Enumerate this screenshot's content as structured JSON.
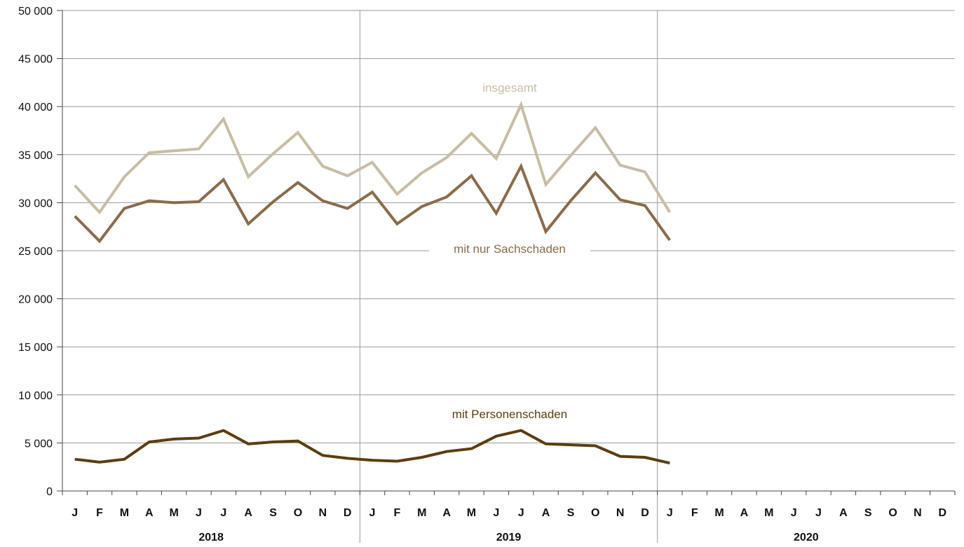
{
  "chart_data": {
    "type": "line",
    "yticks": [
      "0",
      "5 000",
      "10 000",
      "15 000",
      "20 000",
      "25 000",
      "30 000",
      "35 000",
      "40 000",
      "45 000",
      "50 000"
    ],
    "ylim": [
      0,
      50000
    ],
    "grid": true,
    "month_labels": [
      "J",
      "F",
      "M",
      "A",
      "M",
      "J",
      "J",
      "A",
      "S",
      "O",
      "N",
      "D"
    ],
    "years": [
      "2018",
      "2019",
      "2020"
    ],
    "series": [
      {
        "name": "insgesamt",
        "color": "#c8bca4",
        "values": [
          31800,
          29000,
          32700,
          35200,
          35400,
          35600,
          38700,
          32700,
          35100,
          37300,
          33800,
          32800,
          34200,
          30900,
          33100,
          34700,
          37200,
          34600,
          40200,
          31900,
          34900,
          37800,
          33900,
          33200,
          29000
        ]
      },
      {
        "name": "mit nur Sachschaden",
        "color": "#8b6b4a",
        "values": [
          28600,
          26000,
          29400,
          30200,
          30000,
          30100,
          32400,
          27800,
          30100,
          32100,
          30200,
          29400,
          31100,
          27800,
          29600,
          30600,
          32800,
          28900,
          33800,
          27000,
          30200,
          33100,
          30300,
          29700,
          26100
        ]
      },
      {
        "name": "mit Personenschaden",
        "color": "#5c3d10",
        "values": [
          3300,
          3000,
          3300,
          5100,
          5400,
          5500,
          6300,
          4900,
          5100,
          5200,
          3700,
          3400,
          3200,
          3100,
          3500,
          4100,
          4400,
          5700,
          6300,
          4900,
          4800,
          4700,
          3600,
          3500,
          2900
        ]
      }
    ]
  }
}
